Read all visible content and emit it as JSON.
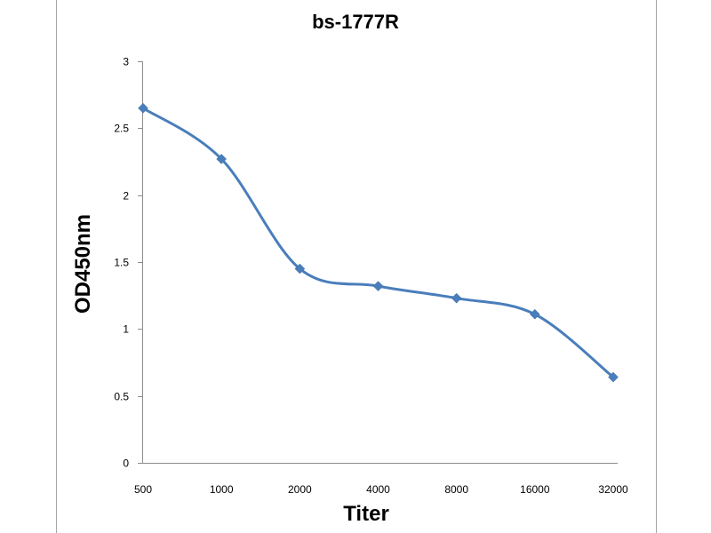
{
  "chart_data": {
    "type": "line",
    "title": "bs-1777R",
    "xlabel": "Titer",
    "ylabel": "OD450nm",
    "categories": [
      "500",
      "1000",
      "2000",
      "4000",
      "8000",
      "16000",
      "32000"
    ],
    "series": [
      {
        "values": [
          2.65,
          2.27,
          1.45,
          1.32,
          1.23,
          1.11,
          0.64
        ],
        "color": "#4a7ebb"
      }
    ],
    "ylim": [
      0,
      3
    ],
    "yticks": [
      "0",
      "0.5",
      "1",
      "1.5",
      "2",
      "2.5",
      "3"
    ],
    "smooth": true,
    "marker": "diamond",
    "grid": false,
    "legend": "none"
  }
}
